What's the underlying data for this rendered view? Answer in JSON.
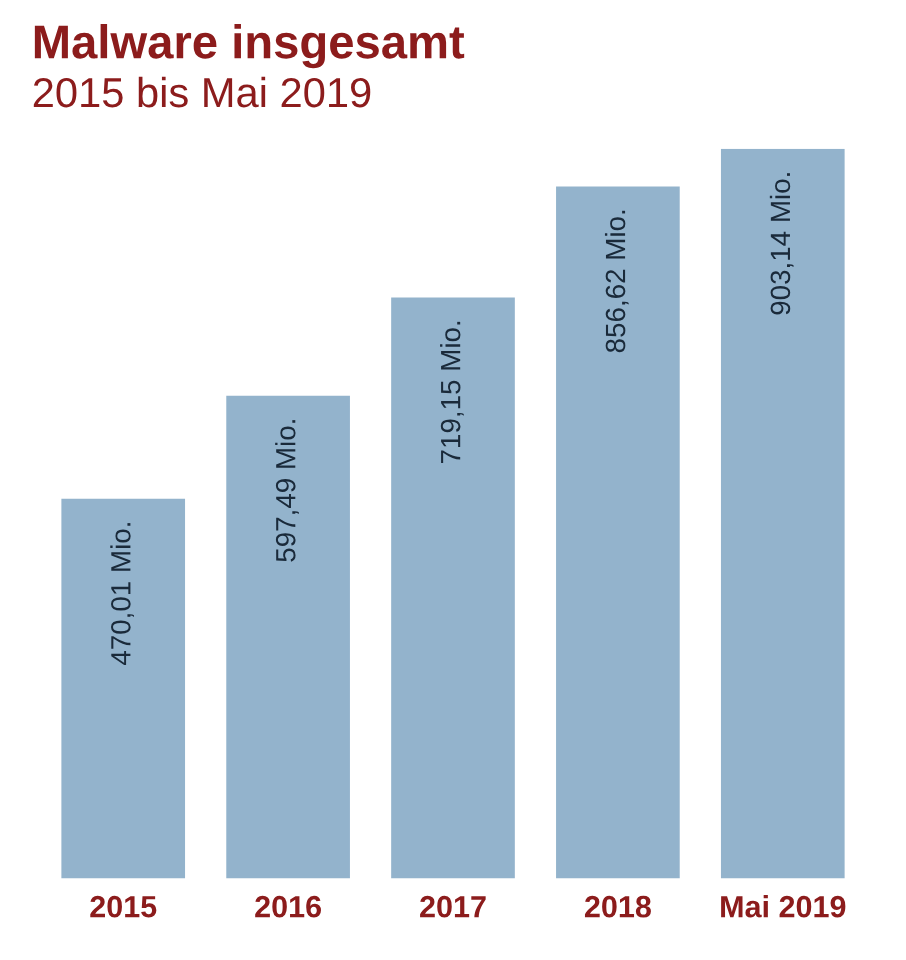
{
  "chart_data": {
    "type": "bar",
    "title": "Malware insgesamt",
    "subtitle": "2015 bis Mai 2019",
    "categories": [
      "2015",
      "2016",
      "2017",
      "2018",
      "Mai 2019"
    ],
    "values": [
      470.01,
      597.49,
      719.15,
      856.62,
      903.14
    ],
    "value_labels": [
      "470,01 Mio.",
      "597,49 Mio.",
      "719,15 Mio.",
      "856,62 Mio.",
      "903,14 Mio."
    ],
    "color": "#93b3cc",
    "grid": false,
    "legend": false
  }
}
